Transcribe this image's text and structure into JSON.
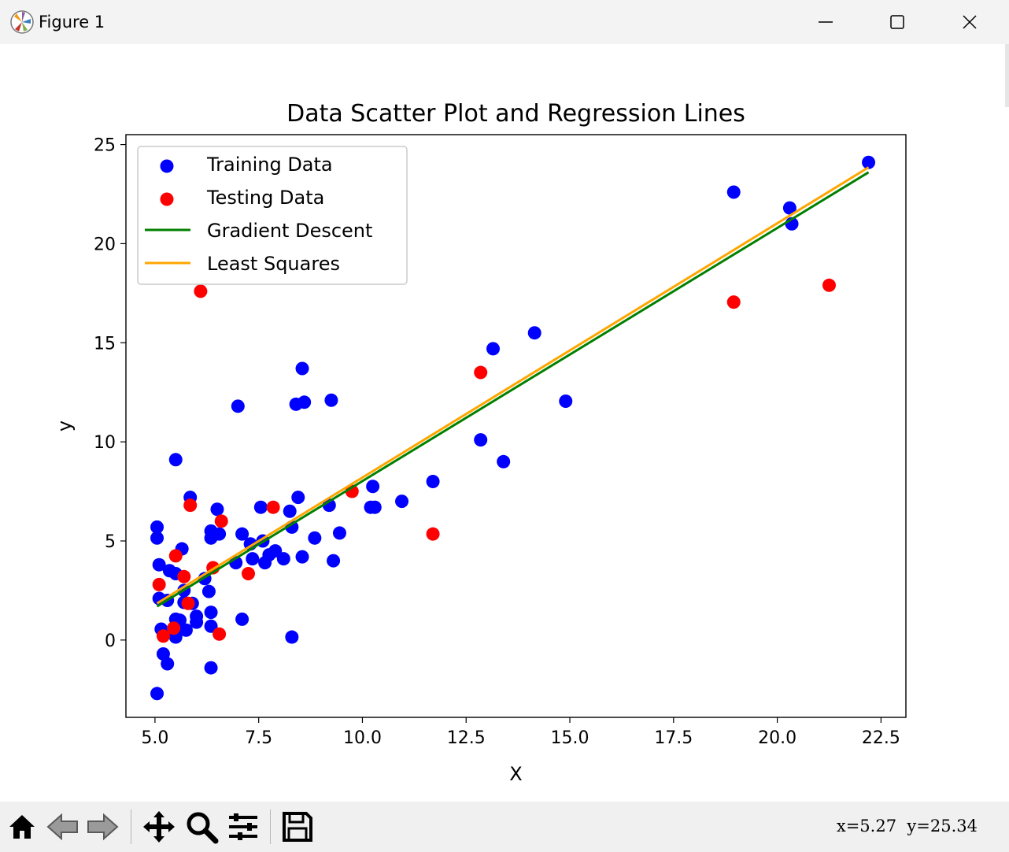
{
  "window": {
    "title": "Figure 1",
    "icons": {
      "app": "matplotlib-icon",
      "minimize": "minimize-icon",
      "maximize": "maximize-icon",
      "close": "close-icon"
    }
  },
  "toolbar": {
    "tools": [
      "home-icon",
      "back-icon",
      "forward-icon",
      "pan-icon",
      "zoom-icon",
      "configure-subplots-icon",
      "save-icon"
    ],
    "coords_label": "x=5.27  y=25.34"
  },
  "colors": {
    "training": "#0000ff",
    "testing": "#ff0000",
    "gradient": "#008000",
    "least_squares": "#ffa500"
  },
  "chart_data": {
    "type": "scatter",
    "title": "Data Scatter Plot and Regression Lines",
    "xlabel": "X",
    "ylabel": "y",
    "xlim": [
      4.3,
      23.1
    ],
    "ylim": [
      -3.9,
      25.5
    ],
    "xticks": [
      "5.0",
      "7.5",
      "10.0",
      "12.5",
      "15.0",
      "17.5",
      "20.0",
      "22.5"
    ],
    "yticks": [
      "0",
      "5",
      "10",
      "15",
      "20",
      "25"
    ],
    "grid": false,
    "legend_position": "top-left",
    "legend": [
      "Training Data",
      "Testing Data",
      "Gradient Descent",
      "Least Squares"
    ],
    "series": [
      {
        "name": "Training Data",
        "kind": "scatter",
        "points": [
          [
            22.2,
            24.1
          ],
          [
            18.95,
            22.6
          ],
          [
            20.3,
            21.8
          ],
          [
            20.35,
            21.0
          ],
          [
            14.15,
            15.5
          ],
          [
            13.15,
            14.7
          ],
          [
            8.55,
            13.7
          ],
          [
            9.25,
            12.1
          ],
          [
            8.6,
            12.0
          ],
          [
            8.4,
            11.9
          ],
          [
            7.0,
            11.8
          ],
          [
            14.9,
            12.05
          ],
          [
            12.85,
            10.1
          ],
          [
            13.4,
            9.0
          ],
          [
            5.5,
            9.1
          ],
          [
            11.7,
            8.0
          ],
          [
            10.25,
            7.75
          ],
          [
            10.95,
            7.0
          ],
          [
            10.2,
            6.7
          ],
          [
            10.3,
            6.7
          ],
          [
            9.2,
            6.8
          ],
          [
            8.45,
            7.2
          ],
          [
            5.85,
            7.2
          ],
          [
            8.25,
            6.5
          ],
          [
            7.55,
            6.7
          ],
          [
            6.5,
            6.6
          ],
          [
            5.05,
            5.7
          ],
          [
            5.05,
            5.15
          ],
          [
            6.35,
            5.5
          ],
          [
            6.35,
            5.15
          ],
          [
            6.55,
            5.35
          ],
          [
            7.1,
            5.35
          ],
          [
            7.6,
            5.0
          ],
          [
            9.45,
            5.4
          ],
          [
            8.85,
            5.15
          ],
          [
            8.3,
            5.7
          ],
          [
            5.65,
            4.6
          ],
          [
            7.3,
            4.85
          ],
          [
            7.9,
            4.5
          ],
          [
            7.75,
            4.3
          ],
          [
            8.55,
            4.2
          ],
          [
            8.1,
            4.1
          ],
          [
            7.35,
            4.1
          ],
          [
            7.65,
            3.9
          ],
          [
            6.95,
            3.9
          ],
          [
            9.3,
            4.0
          ],
          [
            5.1,
            3.8
          ],
          [
            5.35,
            3.5
          ],
          [
            5.5,
            3.35
          ],
          [
            6.2,
            3.1
          ],
          [
            5.3,
            2.0
          ],
          [
            5.1,
            2.1
          ],
          [
            5.7,
            2.5
          ],
          [
            6.3,
            2.45
          ],
          [
            5.7,
            1.9
          ],
          [
            5.9,
            1.85
          ],
          [
            6.0,
            1.2
          ],
          [
            6.35,
            1.4
          ],
          [
            5.5,
            1.05
          ],
          [
            5.6,
            1.0
          ],
          [
            6.0,
            0.9
          ],
          [
            6.35,
            0.7
          ],
          [
            7.1,
            1.05
          ],
          [
            5.75,
            0.5
          ],
          [
            5.45,
            0.5
          ],
          [
            5.15,
            0.55
          ],
          [
            5.5,
            0.15
          ],
          [
            8.3,
            0.15
          ],
          [
            5.2,
            -0.7
          ],
          [
            5.3,
            -1.2
          ],
          [
            6.35,
            -1.4
          ],
          [
            5.05,
            -2.7
          ]
        ]
      },
      {
        "name": "Testing Data",
        "kind": "scatter",
        "points": [
          [
            6.1,
            17.6
          ],
          [
            18.95,
            17.05
          ],
          [
            21.25,
            17.9
          ],
          [
            12.85,
            13.5
          ],
          [
            9.75,
            7.5
          ],
          [
            5.85,
            6.8
          ],
          [
            7.85,
            6.7
          ],
          [
            6.6,
            6.0
          ],
          [
            11.7,
            5.35
          ],
          [
            5.5,
            4.25
          ],
          [
            6.4,
            3.65
          ],
          [
            7.25,
            3.35
          ],
          [
            5.7,
            3.2
          ],
          [
            5.1,
            2.8
          ],
          [
            5.8,
            1.85
          ],
          [
            5.45,
            0.6
          ],
          [
            5.2,
            0.2
          ],
          [
            6.55,
            0.3
          ]
        ]
      },
      {
        "name": "Gradient Descent",
        "kind": "line",
        "points": [
          [
            5.05,
            1.7
          ],
          [
            22.2,
            23.6
          ]
        ]
      },
      {
        "name": "Least Squares",
        "kind": "line",
        "points": [
          [
            5.05,
            1.85
          ],
          [
            22.2,
            23.85
          ]
        ]
      }
    ]
  }
}
